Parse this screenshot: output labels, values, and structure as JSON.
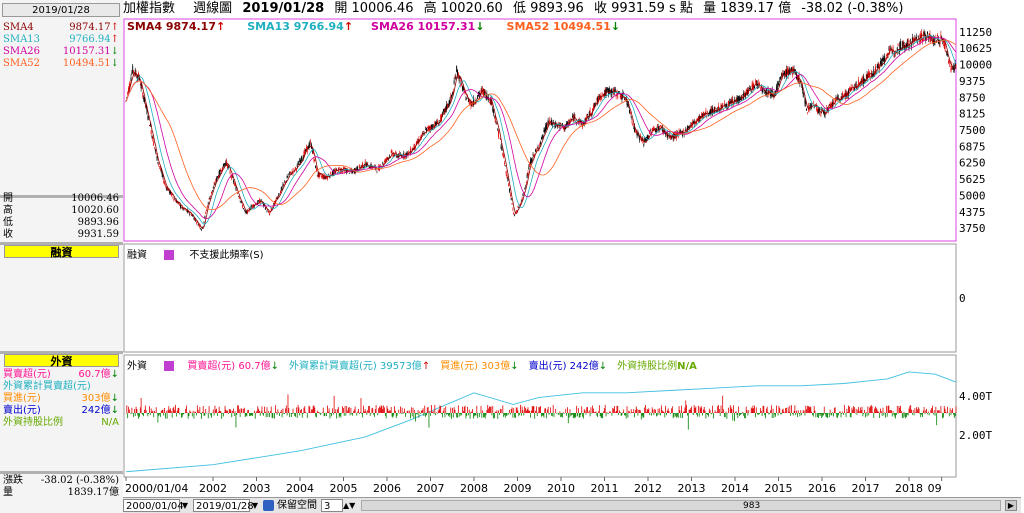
{
  "sidebar": {
    "date": "2019/01/28",
    "legend": [
      {
        "name": "SMA4",
        "value": "9874.17",
        "arrow": "↑",
        "color": "#8b0000",
        "arrow_color": "#d00000"
      },
      {
        "name": "SMA13",
        "value": "9766.94",
        "arrow": "↑",
        "color": "#20b0c0",
        "arrow_color": "#d00000"
      },
      {
        "name": "SMA26",
        "value": "10157.31",
        "arrow": "↓",
        "color": "#d000a0",
        "arrow_color": "#008000"
      },
      {
        "name": "SMA52",
        "value": "10494.51",
        "arrow": "↓",
        "color": "#ff6020",
        "arrow_color": "#008000"
      }
    ],
    "ohlc": [
      {
        "name": "開",
        "value": "10006.46"
      },
      {
        "name": "高",
        "value": "10020.60"
      },
      {
        "name": "低",
        "value": "9893.96"
      },
      {
        "name": "收",
        "value": "9931.59"
      }
    ],
    "margin_header": "融資",
    "foreign_header": "外資",
    "foreign_rows": [
      {
        "name": "買賣超(元)",
        "value": "60.7億",
        "arrow": "↓",
        "color": "#ff1493"
      },
      {
        "name": "外資累計買賣超(元)",
        "value": "",
        "arrow": "",
        "color": "#20b0c0"
      },
      {
        "name": "買進(元)",
        "value": "303億",
        "arrow": "↓",
        "color": "#ff8c00"
      },
      {
        "name": "賣出(元)",
        "value": "242億",
        "arrow": "↓",
        "color": "#0000cc"
      },
      {
        "name": "外資持股比例",
        "value": "N/A",
        "arrow": "",
        "color": "#66aa00"
      }
    ],
    "change": {
      "name": "漲跌",
      "value": "-38.02 (-0.38%)"
    },
    "volume": {
      "name": "量",
      "value": "1839.17億"
    }
  },
  "title_bar": {
    "index_name": "加權指數",
    "period": "週線圖",
    "date": "2019/01/28",
    "open": "開 10006.46",
    "high": "高 10020.60",
    "low": "低 9893.96",
    "close": "收 9931.59 s 點",
    "volume": "量 1839.17 億",
    "change": "-38.02 (-0.38%)"
  },
  "sma_header": [
    {
      "label": "SMA4 9874.17",
      "arrow": "↑",
      "color": "#8b0000",
      "arrow_color": "#d00000"
    },
    {
      "label": "SMA13 9766.94",
      "arrow": "↑",
      "color": "#20b0c0",
      "arrow_color": "#d00000"
    },
    {
      "label": "SMA26 10157.31",
      "arrow": "↓",
      "color": "#d000a0",
      "arrow_color": "#008000"
    },
    {
      "label": "SMA52 10494.51",
      "arrow": "↓",
      "color": "#ff6020",
      "arrow_color": "#008000"
    }
  ],
  "margin_panel": {
    "label": "融資",
    "note": "不支援此頻率(S)",
    "ytick": "0"
  },
  "foreign_panel": {
    "label": "外資",
    "items": [
      {
        "label": "買賣超(元) 60.7億",
        "arrow": "↓",
        "color": "#ff1493"
      },
      {
        "label": "外資累計買賣超(元) 39573億",
        "arrow": "↑",
        "color": "#20b0c0"
      },
      {
        "label": "買進(元) 303億",
        "arrow": "↓",
        "color": "#ff8c00"
      },
      {
        "label": "賣出(元) 242億",
        "arrow": "↓",
        "color": "#0000cc"
      },
      {
        "label": "外資持股比例",
        "arrow": "N/A",
        "color": "#66aa00"
      }
    ],
    "yticks": [
      "4.00T",
      "2.00T"
    ]
  },
  "bottom_bar": {
    "start_date": "2000/01/04",
    "end_date": "2019/01/28",
    "keep_space": "保留空間",
    "keep_space_value": "3",
    "count": "983"
  },
  "chart_data": {
    "type": "line",
    "title": "加權指數 週線圖",
    "x_ticks": [
      "2000/01/04",
      "2002",
      "2003",
      "2004",
      "2005",
      "2006",
      "2007",
      "2008",
      "2009",
      "2010",
      "2011",
      "2012",
      "2013",
      "2014",
      "2015",
      "2016",
      "2017",
      "2018",
      "09"
    ],
    "y_ticks": [
      11250,
      10625,
      10000,
      9375,
      8750,
      8125,
      7500,
      6875,
      6250,
      5625,
      5000,
      4375,
      3750
    ],
    "ylim": [
      3300,
      11700
    ],
    "x_range": [
      2000.0,
      2019.08
    ],
    "series": [
      {
        "name": "加權指數",
        "color": "#000000",
        "x": [
          2000.0,
          2000.15,
          2000.3,
          2000.5,
          2000.7,
          2000.9,
          2001.1,
          2001.3,
          2001.5,
          2001.75,
          2001.9,
          2002.1,
          2002.3,
          2002.5,
          2002.75,
          2002.9,
          2003.1,
          2003.3,
          2003.5,
          2003.75,
          2003.9,
          2004.1,
          2004.25,
          2004.4,
          2004.6,
          2004.9,
          2005.2,
          2005.5,
          2005.8,
          2006.1,
          2006.3,
          2006.5,
          2006.7,
          2006.9,
          2007.2,
          2007.5,
          2007.6,
          2007.8,
          2007.95,
          2008.2,
          2008.4,
          2008.6,
          2008.8,
          2008.92,
          2009.1,
          2009.3,
          2009.5,
          2009.7,
          2009.9,
          2010.1,
          2010.3,
          2010.5,
          2010.7,
          2010.9,
          2011.1,
          2011.3,
          2011.5,
          2011.7,
          2011.9,
          2012.1,
          2012.3,
          2012.5,
          2012.8,
          2013.0,
          2013.3,
          2013.6,
          2013.9,
          2014.2,
          2014.5,
          2014.7,
          2014.9,
          2015.1,
          2015.3,
          2015.5,
          2015.65,
          2015.8,
          2015.95,
          2016.1,
          2016.3,
          2016.5,
          2016.8,
          2017.1,
          2017.3,
          2017.5,
          2017.8,
          2018.0,
          2018.2,
          2018.4,
          2018.6,
          2018.75,
          2018.85,
          2018.95,
          2019.08
        ],
        "values": [
          8600,
          9800,
          9500,
          8100,
          6500,
          5400,
          4900,
          4500,
          4300,
          3700,
          4800,
          5700,
          6300,
          5400,
          4300,
          4600,
          4800,
          4300,
          5000,
          5800,
          6000,
          6600,
          7000,
          5800,
          5700,
          6000,
          5900,
          6200,
          6000,
          6600,
          6500,
          6600,
          7000,
          7500,
          7800,
          8800,
          9800,
          8800,
          8500,
          9000,
          8600,
          7100,
          5400,
          4200,
          4800,
          6300,
          6900,
          7800,
          7700,
          7600,
          8000,
          7700,
          8200,
          8800,
          9000,
          8900,
          8700,
          7500,
          7000,
          7500,
          7600,
          7200,
          7400,
          7700,
          8100,
          8300,
          8500,
          8800,
          9300,
          9000,
          8900,
          9600,
          9800,
          9400,
          8300,
          8500,
          8200,
          8200,
          8600,
          8800,
          9200,
          9600,
          9900,
          10400,
          10700,
          10800,
          11000,
          11100,
          10900,
          11000,
          10600,
          9900,
          9931.59
        ]
      },
      {
        "name": "SMA4",
        "color": "#8b0000"
      },
      {
        "name": "SMA13",
        "color": "#20b0c0"
      },
      {
        "name": "SMA26",
        "color": "#d000a0"
      },
      {
        "name": "SMA52",
        "color": "#ff6020"
      }
    ],
    "foreign_cumulative_ylim": [
      0,
      5.0
    ],
    "foreign_cumulative_series": {
      "name": "外資累計買賣超(元)",
      "color": "#40c0e0",
      "x": [
        2000.0,
        2002.0,
        2004.0,
        2005.5,
        2006.5,
        2007.5,
        2008.0,
        2008.9,
        2009.5,
        2010.5,
        2011.5,
        2012.5,
        2013.5,
        2014.5,
        2015.5,
        2016.5,
        2017.5,
        2018.0,
        2018.6,
        2019.08
      ],
      "values": [
        0.1,
        0.4,
        1.0,
        1.6,
        2.3,
        3.1,
        3.5,
        3.0,
        3.3,
        3.5,
        3.5,
        3.6,
        3.7,
        3.8,
        3.8,
        3.9,
        4.1,
        4.4,
        4.3,
        3.96
      ]
    }
  }
}
